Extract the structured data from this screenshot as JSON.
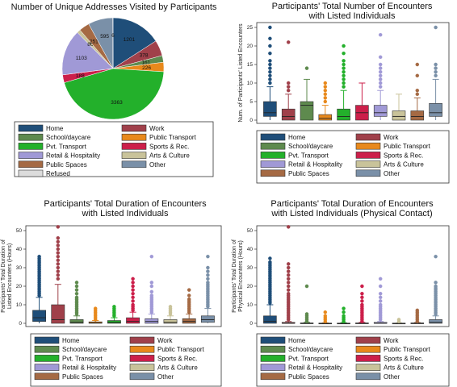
{
  "categories": [
    "Home",
    "Work",
    "School/daycare",
    "Public Transport",
    "Pvt. Transport",
    "Sports & Rec.",
    "Retail & Hospitality",
    "Arts & Culture",
    "Public Spaces",
    "Other",
    "Refused"
  ],
  "colors": {
    "Home": "#1f4e79",
    "Work": "#a0404a",
    "School/daycare": "#5e8a4e",
    "Public Transport": "#e8891c",
    "Pvt. Transport": "#23b02b",
    "Sports & Rec.": "#cc1f4a",
    "Retail & Hospitality": "#a099d6",
    "Arts & Culture": "#c9c39a",
    "Public Spaces": "#a56a44",
    "Other": "#7a90a8",
    "Refused": "#dcdcdc"
  },
  "chart_data": [
    {
      "type": "pie",
      "title": "Number of Unique Addresses Visited by Participants",
      "slices": [
        {
          "label": "Home",
          "value": 1201
        },
        {
          "label": "Work",
          "value": 378
        },
        {
          "label": "School/daycare",
          "value": 161
        },
        {
          "label": "Public Transport",
          "value": 226
        },
        {
          "label": "Pvt. Transport",
          "value": 3363
        },
        {
          "label": "Sports & Rec.",
          "value": 188
        },
        {
          "label": "Retail & Hospitality",
          "value": 1103
        },
        {
          "label": "Arts & Culture",
          "value": 86
        },
        {
          "label": "Public Spaces",
          "value": 251
        },
        {
          "label": "Other",
          "value": 595
        },
        {
          "label": "Refused",
          "value": 6
        }
      ],
      "legend": [
        "Home",
        "Work",
        "School/daycare",
        "Public Transport",
        "Pvt. Transport",
        "Sports & Rec.",
        "Retail & Hospitality",
        "Arts & Culture",
        "Public Spaces",
        "Other",
        "Refused"
      ]
    },
    {
      "type": "box",
      "title": [
        "Participants' Total Number of Encounters",
        "with Listed Individuals"
      ],
      "ylabel": "Num. of Participants' Listed Encounters",
      "ylim": [
        0,
        25
      ],
      "yticks": [
        0,
        5,
        10,
        15,
        20,
        25
      ],
      "boxes": [
        {
          "label": "Home",
          "q1": 1,
          "median": 2,
          "q3": 5,
          "lw": 0,
          "uw": 9,
          "outliers": [
            10,
            11,
            12,
            13,
            14,
            15,
            16,
            18,
            20,
            22,
            25
          ]
        },
        {
          "label": "Work",
          "q1": 0,
          "median": 1,
          "q3": 3,
          "lw": 0,
          "uw": 7,
          "outliers": [
            8,
            9,
            10,
            21
          ]
        },
        {
          "label": "School/daycare",
          "q1": 0,
          "median": 4,
          "q3": 5,
          "lw": 0,
          "uw": 11,
          "outliers": [
            14
          ]
        },
        {
          "label": "Public Transport",
          "q1": 0,
          "median": 0.5,
          "q3": 1.5,
          "lw": 0,
          "uw": 4,
          "outliers": [
            5,
            6,
            7,
            8,
            9,
            10
          ]
        },
        {
          "label": "Pvt. Transport",
          "q1": 0,
          "median": 1,
          "q3": 3,
          "lw": 0,
          "uw": 8,
          "outliers": [
            9,
            10,
            11,
            12,
            13,
            14,
            15,
            16,
            18,
            20
          ]
        },
        {
          "label": "Sports & Rec.",
          "q1": 0,
          "median": 2,
          "q3": 4,
          "lw": 0,
          "uw": 10,
          "outliers": []
        },
        {
          "label": "Retail & Hospitality",
          "q1": 1,
          "median": 2,
          "q3": 4,
          "lw": 0,
          "uw": 8,
          "outliers": [
            9,
            10,
            11,
            12,
            13,
            14,
            15,
            17,
            23
          ]
        },
        {
          "label": "Arts & Culture",
          "q1": 0,
          "median": 1,
          "q3": 2.5,
          "lw": 0,
          "uw": 7,
          "outliers": []
        },
        {
          "label": "Public Spaces",
          "q1": 0,
          "median": 1,
          "q3": 2.5,
          "lw": 0,
          "uw": 6,
          "outliers": [
            7,
            8,
            12,
            15
          ]
        },
        {
          "label": "Other",
          "q1": 1,
          "median": 2,
          "q3": 4.5,
          "lw": 0,
          "uw": 11,
          "outliers": [
            12,
            13,
            14,
            15,
            25
          ]
        }
      ],
      "legend": [
        "Home",
        "Work",
        "School/daycare",
        "Public Transport",
        "Pvt. Transport",
        "Sports & Rec.",
        "Retail & Hospitality",
        "Arts & Culture",
        "Public Spaces",
        "Other"
      ]
    },
    {
      "type": "box",
      "title": [
        "Participants' Total Duration of Encounters",
        "with Listed Individuals"
      ],
      "ylabel": [
        "Participants' Total Duration of",
        "Listed Encounters (Hours)"
      ],
      "ylim": [
        0,
        50
      ],
      "yticks": [
        0,
        10,
        20,
        30,
        40,
        50
      ],
      "boxes": [
        {
          "label": "Home",
          "q1": 1,
          "median": 3,
          "q3": 7,
          "lw": 0,
          "uw": 14,
          "outliers": [
            15,
            16,
            17,
            18,
            19,
            20,
            21,
            22,
            23,
            24,
            25,
            26,
            27,
            28,
            29,
            30,
            31,
            32,
            33,
            34,
            35,
            36
          ]
        },
        {
          "label": "Work",
          "q1": 0,
          "median": 2,
          "q3": 10,
          "lw": 0,
          "uw": 21,
          "outliers": [
            24,
            26,
            28,
            30,
            32,
            34,
            36,
            38,
            40,
            42,
            44,
            46,
            52
          ]
        },
        {
          "label": "School/daycare",
          "q1": 0,
          "median": 0.5,
          "q3": 2,
          "lw": 0,
          "uw": 4,
          "outliers": [
            5,
            6,
            7,
            8,
            9,
            10,
            11,
            12,
            13,
            14,
            16,
            18,
            20,
            22
          ]
        },
        {
          "label": "Public Transport",
          "q1": 0,
          "median": 0.2,
          "q3": 0.8,
          "lw": 0,
          "uw": 1.5,
          "outliers": [
            2,
            3,
            4,
            5,
            6,
            7,
            8
          ]
        },
        {
          "label": "Pvt. Transport",
          "q1": 0,
          "median": 0.5,
          "q3": 1.5,
          "lw": 0,
          "uw": 3,
          "outliers": [
            4,
            5,
            6,
            7,
            8,
            9
          ]
        },
        {
          "label": "Sports & Rec.",
          "q1": 0,
          "median": 1,
          "q3": 3,
          "lw": 0,
          "uw": 6,
          "outliers": [
            7,
            8,
            9,
            10,
            12,
            14,
            16,
            18,
            20,
            22,
            24
          ]
        },
        {
          "label": "Retail & Hospitality",
          "q1": 0,
          "median": 1,
          "q3": 2.5,
          "lw": 0,
          "uw": 5,
          "outliers": [
            6,
            7,
            8,
            9,
            10,
            11,
            12,
            13,
            14,
            15,
            17,
            20,
            22,
            36
          ]
        },
        {
          "label": "Arts & Culture",
          "q1": 0,
          "median": 0.5,
          "q3": 2,
          "lw": 0,
          "uw": 4,
          "outliers": [
            5,
            6,
            7,
            8,
            9
          ]
        },
        {
          "label": "Public Spaces",
          "q1": 0,
          "median": 1,
          "q3": 2.5,
          "lw": 0,
          "uw": 5,
          "outliers": [
            6,
            7,
            8,
            9,
            10,
            11,
            12,
            13,
            15,
            18
          ]
        },
        {
          "label": "Other",
          "q1": 0.5,
          "median": 2,
          "q3": 4,
          "lw": 0,
          "uw": 8,
          "outliers": [
            9,
            10,
            11,
            12,
            13,
            14,
            15,
            16,
            17,
            18,
            19,
            20,
            21,
            22,
            24,
            26,
            28,
            30,
            36
          ]
        }
      ],
      "legend": [
        "Home",
        "Work",
        "School/daycare",
        "Public Transport",
        "Pvt. Transport",
        "Sports & Rec.",
        "Retail & Hospitality",
        "Arts & Culture",
        "Public Spaces",
        "Other"
      ]
    },
    {
      "type": "box",
      "title": [
        "Participants' Total Duration of Encounters",
        "with Listed Individuals (Physical Contact)"
      ],
      "ylabel": [
        "Participants' Total Duration of",
        "Physical Encounters (Hours)"
      ],
      "ylim": [
        0,
        50
      ],
      "yticks": [
        0,
        10,
        20,
        30,
        40,
        50
      ],
      "boxes": [
        {
          "label": "Home",
          "q1": 0,
          "median": 1,
          "q3": 4,
          "lw": 0,
          "uw": 10,
          "outliers": [
            11,
            12,
            13,
            14,
            15,
            16,
            17,
            18,
            19,
            20,
            21,
            22,
            23,
            24,
            25,
            26,
            27,
            28,
            29,
            30,
            31,
            32,
            33,
            35
          ]
        },
        {
          "label": "Work",
          "q1": 0,
          "median": 0,
          "q3": 0.5,
          "lw": 0,
          "uw": 1,
          "outliers": [
            2,
            3,
            4,
            5,
            6,
            7,
            8,
            9,
            10,
            11,
            12,
            13,
            14,
            15,
            16,
            18,
            20,
            22,
            24,
            26,
            28,
            30,
            32,
            52
          ]
        },
        {
          "label": "School/daycare",
          "q1": 0,
          "median": 0,
          "q3": 0.2,
          "lw": 0,
          "uw": 0.5,
          "outliers": [
            1,
            2,
            3,
            4,
            5,
            20
          ]
        },
        {
          "label": "Public Transport",
          "q1": 0,
          "median": 0,
          "q3": 0.1,
          "lw": 0,
          "uw": 0.2,
          "outliers": [
            1,
            2,
            3,
            4,
            6
          ]
        },
        {
          "label": "Pvt. Transport",
          "q1": 0,
          "median": 0,
          "q3": 0.1,
          "lw": 0,
          "uw": 0.3,
          "outliers": [
            1,
            2,
            3,
            4,
            6,
            8
          ]
        },
        {
          "label": "Sports & Rec.",
          "q1": 0,
          "median": 0,
          "q3": 0.2,
          "lw": 0,
          "uw": 0.5,
          "outliers": [
            1,
            2,
            3,
            4,
            5,
            6,
            7,
            8,
            9,
            10,
            12,
            14,
            16,
            20
          ]
        },
        {
          "label": "Retail & Hospitality",
          "q1": 0,
          "median": 0,
          "q3": 0.5,
          "lw": 0,
          "uw": 1,
          "outliers": [
            2,
            3,
            4,
            5,
            6,
            7,
            8,
            9,
            10,
            12,
            14,
            16,
            20,
            24
          ]
        },
        {
          "label": "Arts & Culture",
          "q1": 0,
          "median": 0,
          "q3": 0.1,
          "lw": 0,
          "uw": 0.2,
          "outliers": [
            1,
            2
          ]
        },
        {
          "label": "Public Spaces",
          "q1": 0,
          "median": 0,
          "q3": 0.2,
          "lw": 0,
          "uw": 0.4,
          "outliers": [
            1,
            2,
            3,
            4,
            5,
            6,
            7
          ]
        },
        {
          "label": "Other",
          "q1": 0,
          "median": 0.5,
          "q3": 2,
          "lw": 0,
          "uw": 4,
          "outliers": [
            5,
            6,
            7,
            8,
            9,
            10,
            11,
            12,
            13,
            14,
            15,
            16,
            17,
            18,
            19,
            20,
            22,
            36
          ]
        }
      ],
      "legend": [
        "Home",
        "Work",
        "School/daycare",
        "Public Transport",
        "Pvt. Transport",
        "Sports & Rec.",
        "Retail & Hospitality",
        "Arts & Culture",
        "Public Spaces",
        "Other"
      ]
    }
  ]
}
